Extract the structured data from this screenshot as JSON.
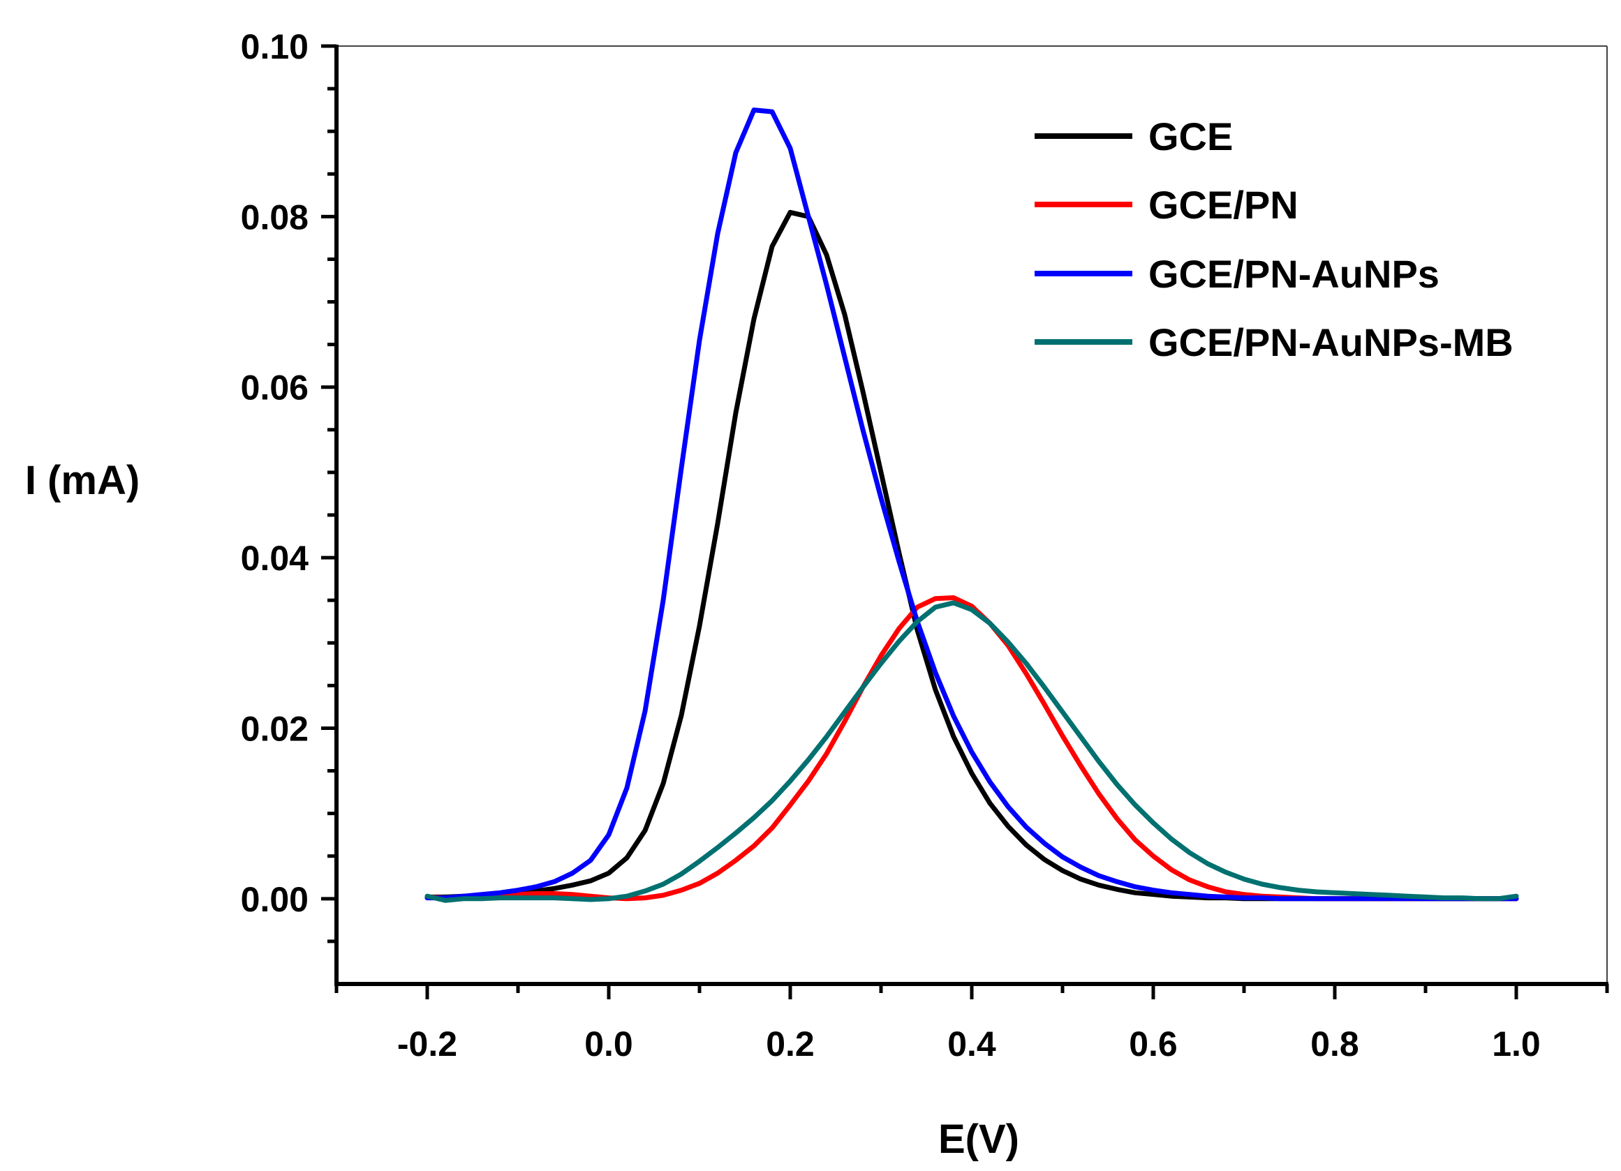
{
  "chart_data": {
    "type": "line",
    "title": "",
    "xlabel": "E(V)",
    "ylabel": "I (mA)",
    "xlim": [
      -0.3,
      1.1
    ],
    "ylim": [
      -0.01,
      0.1
    ],
    "x_ticks": [
      -0.2,
      0.0,
      0.2,
      0.4,
      0.6,
      0.8,
      1.0
    ],
    "x_tick_labels": [
      "-0.2",
      "0.0",
      "0.2",
      "0.4",
      "0.6",
      "0.8",
      "1.0"
    ],
    "y_ticks": [
      0.0,
      0.02,
      0.04,
      0.06,
      0.08,
      0.1
    ],
    "y_tick_labels": [
      "0.00",
      "0.02",
      "0.04",
      "0.06",
      "0.08",
      "0.10"
    ],
    "grid": false,
    "legend_position": "top-right",
    "series": [
      {
        "name": "GCE",
        "color": "#000000",
        "x": [
          -0.2,
          -0.18,
          -0.16,
          -0.14,
          -0.12,
          -0.1,
          -0.08,
          -0.06,
          -0.04,
          -0.02,
          0.0,
          0.02,
          0.04,
          0.06,
          0.08,
          0.1,
          0.12,
          0.14,
          0.16,
          0.18,
          0.2,
          0.22,
          0.24,
          0.26,
          0.28,
          0.3,
          0.32,
          0.34,
          0.36,
          0.38,
          0.4,
          0.42,
          0.44,
          0.46,
          0.48,
          0.5,
          0.52,
          0.54,
          0.56,
          0.58,
          0.6,
          0.62,
          0.64,
          0.66,
          0.68,
          0.7,
          0.72,
          0.74,
          0.76,
          0.78,
          0.8,
          0.82,
          0.84,
          0.86,
          0.88,
          0.9,
          0.92,
          0.94,
          0.96,
          0.98,
          1.0
        ],
        "y": [
          0.0002,
          0.0002,
          0.0003,
          0.0004,
          0.0005,
          0.0007,
          0.0009,
          0.0012,
          0.0016,
          0.0021,
          0.003,
          0.0048,
          0.008,
          0.0135,
          0.0215,
          0.032,
          0.044,
          0.057,
          0.068,
          0.0765,
          0.0805,
          0.08,
          0.0755,
          0.0685,
          0.0595,
          0.05,
          0.0405,
          0.0315,
          0.0245,
          0.019,
          0.0147,
          0.0112,
          0.0085,
          0.0063,
          0.0046,
          0.0033,
          0.0023,
          0.0016,
          0.0011,
          0.0007,
          0.0005,
          0.0003,
          0.0002,
          0.0001,
          0.0001,
          0.0,
          0.0,
          0.0,
          0.0,
          0.0,
          0.0,
          0.0,
          0.0,
          0.0,
          0.0,
          0.0,
          0.0,
          0.0,
          0.0,
          0.0,
          0.0
        ]
      },
      {
        "name": "GCE/PN",
        "color": "#ff0000",
        "x": [
          -0.2,
          -0.18,
          -0.16,
          -0.14,
          -0.12,
          -0.1,
          -0.08,
          -0.06,
          -0.04,
          -0.02,
          0.0,
          0.02,
          0.04,
          0.06,
          0.08,
          0.1,
          0.12,
          0.14,
          0.16,
          0.18,
          0.2,
          0.22,
          0.24,
          0.26,
          0.28,
          0.3,
          0.32,
          0.34,
          0.36,
          0.38,
          0.4,
          0.42,
          0.44,
          0.46,
          0.48,
          0.5,
          0.52,
          0.54,
          0.56,
          0.58,
          0.6,
          0.62,
          0.64,
          0.66,
          0.68,
          0.7,
          0.72,
          0.74,
          0.76,
          0.78,
          0.8,
          0.82,
          0.84,
          0.86,
          0.88,
          0.9,
          0.92,
          0.94,
          0.96,
          0.98,
          1.0
        ],
        "y": [
          0.0002,
          0.0001,
          0.0002,
          0.0003,
          0.0004,
          0.0005,
          0.0006,
          0.0006,
          0.0005,
          0.0003,
          0.0001,
          0.0,
          0.0001,
          0.0004,
          0.001,
          0.0018,
          0.003,
          0.0045,
          0.0062,
          0.0083,
          0.011,
          0.0138,
          0.017,
          0.0208,
          0.0248,
          0.0285,
          0.0317,
          0.0342,
          0.0352,
          0.0353,
          0.0343,
          0.0323,
          0.0297,
          0.0264,
          0.0228,
          0.0191,
          0.0156,
          0.0123,
          0.0094,
          0.0069,
          0.005,
          0.0034,
          0.0022,
          0.0014,
          0.0008,
          0.0005,
          0.0003,
          0.0002,
          0.0001,
          0.0,
          0.0,
          0.0,
          0.0,
          0.0,
          0.0,
          0.0,
          0.0,
          0.0,
          0.0,
          0.0,
          0.0
        ]
      },
      {
        "name": "GCE/PN-AuNPs",
        "color": "#0000ff",
        "x": [
          -0.2,
          -0.18,
          -0.16,
          -0.14,
          -0.12,
          -0.1,
          -0.08,
          -0.06,
          -0.04,
          -0.02,
          0.0,
          0.02,
          0.04,
          0.06,
          0.08,
          0.1,
          0.12,
          0.14,
          0.16,
          0.18,
          0.2,
          0.22,
          0.24,
          0.26,
          0.28,
          0.3,
          0.32,
          0.34,
          0.36,
          0.38,
          0.4,
          0.42,
          0.44,
          0.46,
          0.48,
          0.5,
          0.52,
          0.54,
          0.56,
          0.58,
          0.6,
          0.62,
          0.64,
          0.66,
          0.68,
          0.7,
          0.72,
          0.74,
          0.76,
          0.78,
          0.8,
          0.82,
          0.84,
          0.86,
          0.88,
          0.9,
          0.92,
          0.94,
          0.96,
          0.98,
          1.0
        ],
        "y": [
          0.0001,
          0.0001,
          0.0003,
          0.0005,
          0.0007,
          0.001,
          0.0014,
          0.002,
          0.003,
          0.0045,
          0.0075,
          0.013,
          0.022,
          0.035,
          0.0505,
          0.0655,
          0.078,
          0.0875,
          0.0925,
          0.0923,
          0.088,
          0.08,
          0.072,
          0.0635,
          0.055,
          0.047,
          0.0395,
          0.0325,
          0.0265,
          0.0214,
          0.0172,
          0.0137,
          0.0108,
          0.0084,
          0.0065,
          0.0049,
          0.0037,
          0.0027,
          0.002,
          0.0014,
          0.001,
          0.0007,
          0.0005,
          0.0003,
          0.0002,
          0.0001,
          0.0001,
          0.0,
          0.0,
          0.0,
          0.0,
          0.0,
          0.0,
          0.0,
          0.0,
          0.0,
          0.0,
          0.0,
          0.0,
          0.0,
          0.0
        ]
      },
      {
        "name": "GCE/PN-AuNPs-MB",
        "color": "#007070",
        "x": [
          -0.2,
          -0.18,
          -0.16,
          -0.14,
          -0.12,
          -0.1,
          -0.08,
          -0.06,
          -0.04,
          -0.02,
          0.0,
          0.02,
          0.04,
          0.06,
          0.08,
          0.1,
          0.12,
          0.14,
          0.16,
          0.18,
          0.2,
          0.22,
          0.24,
          0.26,
          0.28,
          0.3,
          0.32,
          0.34,
          0.36,
          0.38,
          0.4,
          0.42,
          0.44,
          0.46,
          0.48,
          0.5,
          0.52,
          0.54,
          0.56,
          0.58,
          0.6,
          0.62,
          0.64,
          0.66,
          0.68,
          0.7,
          0.72,
          0.74,
          0.76,
          0.78,
          0.8,
          0.82,
          0.84,
          0.86,
          0.88,
          0.9,
          0.92,
          0.94,
          0.96,
          0.98,
          1.0
        ],
        "y": [
          0.0003,
          -0.0002,
          0.0,
          0.0,
          0.0001,
          0.0001,
          0.0001,
          0.0001,
          0.0,
          -0.0001,
          0.0,
          0.0003,
          0.0009,
          0.0017,
          0.0029,
          0.0044,
          0.006,
          0.0077,
          0.0095,
          0.0115,
          0.0138,
          0.0163,
          0.019,
          0.0219,
          0.0248,
          0.0276,
          0.0302,
          0.0325,
          0.0342,
          0.0347,
          0.0339,
          0.0323,
          0.0301,
          0.0276,
          0.0248,
          0.0219,
          0.019,
          0.0161,
          0.0134,
          0.011,
          0.0089,
          0.007,
          0.0054,
          0.0041,
          0.0031,
          0.0023,
          0.0017,
          0.0013,
          0.001,
          0.0008,
          0.0007,
          0.0006,
          0.0005,
          0.0004,
          0.0003,
          0.0002,
          0.0001,
          0.0001,
          0.0,
          0.0,
          0.0003
        ]
      }
    ]
  }
}
